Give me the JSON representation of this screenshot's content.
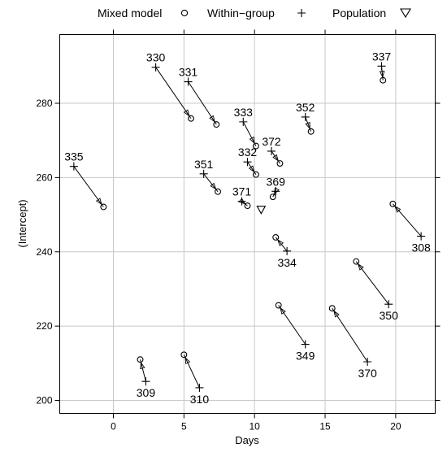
{
  "chart_data": {
    "type": "scatter",
    "title": "",
    "xlabel": "Days",
    "ylabel": "(Intercept)",
    "xlim": [
      -3.8,
      22.8
    ],
    "ylim": [
      196.5,
      298.5
    ],
    "x_ticks": [
      0,
      5,
      10,
      15,
      20
    ],
    "x_tick_labels": [
      "0",
      "5",
      "10",
      "15",
      "20"
    ],
    "y_ticks": [
      200,
      220,
      240,
      260,
      280
    ],
    "y_tick_labels": [
      "200",
      "220",
      "240",
      "260",
      "280"
    ],
    "grid": true,
    "legend_position": "top",
    "legend": [
      {
        "name": "Mixed model",
        "symbol": "circle"
      },
      {
        "name": "Within−group",
        "symbol": "plus"
      },
      {
        "name": "Population",
        "symbol": "triangle-down"
      }
    ],
    "population": {
      "x": 10.47,
      "y": 251.4
    },
    "subjects": [
      {
        "id": "330",
        "within": [
          3.0,
          289.7
        ],
        "mixed": [
          5.5,
          275.9
        ],
        "label_side": "above"
      },
      {
        "id": "331",
        "within": [
          5.3,
          285.8
        ],
        "mixed": [
          7.3,
          274.3
        ],
        "label_side": "above"
      },
      {
        "id": "333",
        "within": [
          9.2,
          275.0
        ],
        "mixed": [
          10.1,
          268.5
        ],
        "label_side": "above"
      },
      {
        "id": "352",
        "within": [
          13.6,
          276.3
        ],
        "mixed": [
          14.0,
          272.4
        ],
        "label_side": "above"
      },
      {
        "id": "337",
        "within": [
          19.0,
          290.0
        ],
        "mixed": [
          19.1,
          286.2
        ],
        "label_side": "above"
      },
      {
        "id": "372",
        "within": [
          11.2,
          267.1
        ],
        "mixed": [
          11.8,
          263.8
        ],
        "label_side": "above"
      },
      {
        "id": "332",
        "within": [
          9.5,
          264.2
        ],
        "mixed": [
          10.1,
          260.8
        ],
        "label_side": "above"
      },
      {
        "id": "335",
        "within": [
          -2.8,
          263.0
        ],
        "mixed": [
          -0.7,
          252.1
        ],
        "label_side": "above"
      },
      {
        "id": "351",
        "within": [
          6.4,
          261.0
        ],
        "mixed": [
          7.4,
          256.2
        ],
        "label_side": "above"
      },
      {
        "id": "369",
        "within": [
          11.5,
          256.3
        ],
        "mixed": [
          11.3,
          254.8
        ],
        "label_side": "above"
      },
      {
        "id": "371",
        "within": [
          9.1,
          253.6
        ],
        "mixed": [
          9.5,
          252.4
        ],
        "label_side": "above"
      },
      {
        "id": "308",
        "within": [
          21.8,
          244.2
        ],
        "mixed": [
          19.8,
          252.9
        ],
        "label_side": "below"
      },
      {
        "id": "334",
        "within": [
          12.3,
          240.2
        ],
        "mixed": [
          11.5,
          243.9
        ],
        "label_side": "below"
      },
      {
        "id": "350",
        "within": [
          19.5,
          225.9
        ],
        "mixed": [
          17.2,
          237.4
        ],
        "label_side": "below"
      },
      {
        "id": "349",
        "within": [
          13.6,
          215.1
        ],
        "mixed": [
          11.7,
          225.6
        ],
        "label_side": "below"
      },
      {
        "id": "370",
        "within": [
          18.0,
          210.4
        ],
        "mixed": [
          15.5,
          224.8
        ],
        "label_side": "below"
      },
      {
        "id": "309",
        "within": [
          2.3,
          205.1
        ],
        "mixed": [
          1.9,
          211.0
        ],
        "label_side": "below"
      },
      {
        "id": "310",
        "within": [
          6.1,
          203.4
        ],
        "mixed": [
          5.0,
          212.3
        ],
        "label_side": "below"
      }
    ]
  }
}
